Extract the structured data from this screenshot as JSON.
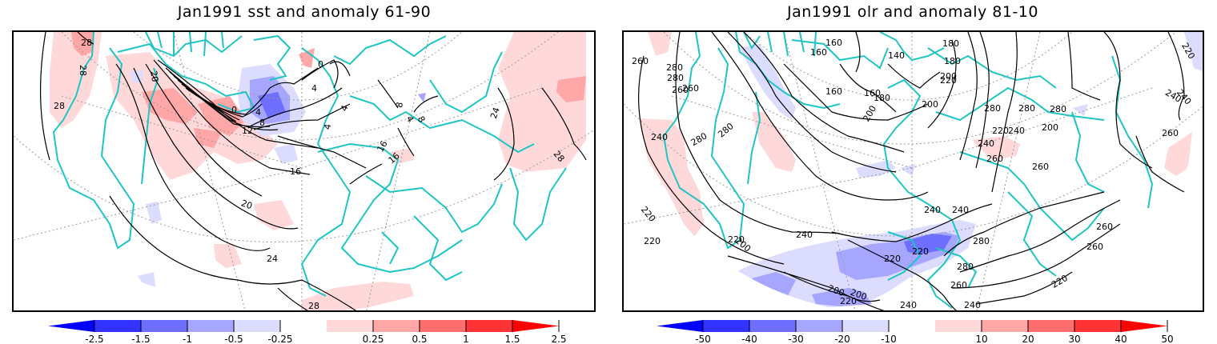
{
  "panels": [
    {
      "id": "sst",
      "title": "Jan1991 sst and anomaly 61-90",
      "variable": "sst",
      "anomaly_base": "61-90",
      "contour_labels": [
        "28",
        "28",
        "28",
        "20",
        "0",
        "4",
        "8",
        "12",
        "4",
        "0",
        "4",
        "4",
        "4",
        "8",
        "16",
        "16",
        "20",
        "24",
        "24",
        "28",
        "28",
        "8",
        "16"
      ],
      "colorbar": {
        "tick_labels": [
          "-2.5",
          "-1.5",
          "-1",
          "-0.5",
          "-0.25",
          "0.25",
          "0.5",
          "1",
          "1.5",
          "2.5"
        ],
        "colors": [
          "#0000ff",
          "#3333ff",
          "#6e6eff",
          "#a6a6ff",
          "#dcdcff",
          "#ffffff",
          "#ffd9d9",
          "#ffa6a6",
          "#ff6e6e",
          "#ff3333",
          "#ff0000"
        ]
      }
    },
    {
      "id": "olr",
      "title": "Jan1991 olr and anomaly 81-10",
      "variable": "olr",
      "anomaly_base": "81-10",
      "contour_labels": [
        "260",
        "280",
        "280",
        "260",
        "260",
        "240",
        "280",
        "280",
        "160",
        "160",
        "160",
        "140",
        "160",
        "180",
        "180",
        "180",
        "200",
        "200",
        "200",
        "220",
        "220",
        "280",
        "280",
        "240",
        "240",
        "240",
        "260",
        "260",
        "220",
        "220",
        "200",
        "220",
        "200",
        "200",
        "220",
        "240",
        "240",
        "220",
        "220",
        "240",
        "240",
        "280",
        "280",
        "260",
        "260",
        "260",
        "240",
        "220",
        "260",
        "200",
        "220",
        "240",
        "280"
      ],
      "colorbar": {
        "tick_labels": [
          "-50",
          "-40",
          "-30",
          "-20",
          "-10",
          "10",
          "20",
          "30",
          "40",
          "50"
        ],
        "colors": [
          "#0000ff",
          "#3333ff",
          "#6e6eff",
          "#a6a6ff",
          "#dcdcff",
          "#ffffff",
          "#ffd9d9",
          "#ffa6a6",
          "#ff6e6e",
          "#ff3333",
          "#ff0000"
        ]
      }
    }
  ],
  "style": {
    "coast_color": "#1fc4c4",
    "contour_color": "#000000",
    "graticule_color": "#9a9a9a"
  }
}
